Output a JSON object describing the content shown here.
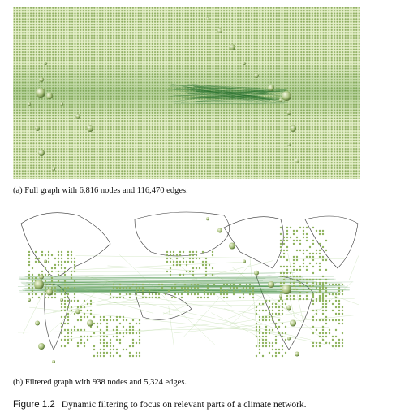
{
  "panels": [
    {
      "caption": "(a) Full graph with 6,816 nodes and 116,470 edges."
    },
    {
      "caption": "(b) Filtered graph with 938 nodes and 5,324 edges."
    }
  ],
  "figure": {
    "label": "Figure 1.2",
    "caption": "Dynamic filtering to focus on relevant parts of a climate network."
  }
}
